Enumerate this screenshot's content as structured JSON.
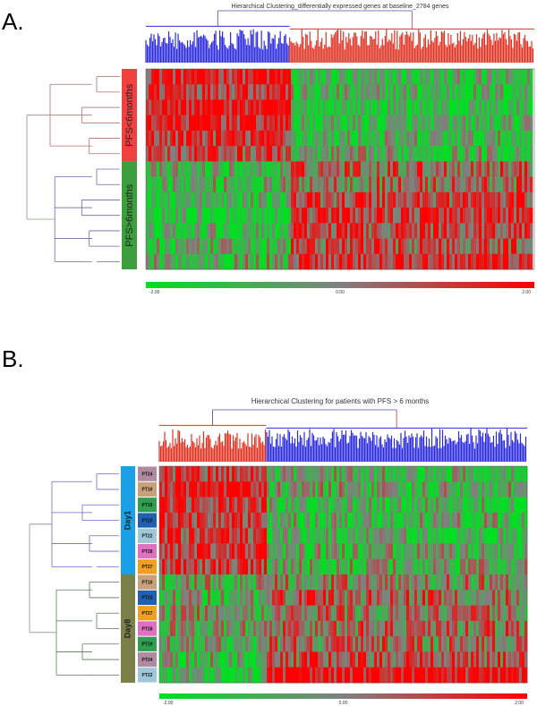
{
  "colors": {
    "low": "#00e020",
    "mid": "#808080",
    "high": "#ff0000",
    "dendro_blue": "#2a2ae0",
    "dendro_red": "#e03020",
    "group_red": "#f04040",
    "group_green": "#3c9e3c",
    "day1_blue": "#1aa0e8",
    "day8_olive": "#7a8048"
  },
  "chart_data": [
    {
      "panel": "A.",
      "type": "heatmap",
      "title": "Hierarchical Clustering_differentially expressed genes at baseline_2784 genes",
      "row_groups": [
        {
          "label": "PFS<6months",
          "rows": 6,
          "color": "#f04040"
        },
        {
          "label": "PFS>6months",
          "rows": 7,
          "color": "#3c9e3c"
        }
      ],
      "column_clusters": [
        {
          "name": "blue",
          "fraction": 0.37
        },
        {
          "name": "red",
          "fraction": 0.63
        }
      ],
      "row_block_levels": [
        [
          0.8,
          -0.6
        ],
        [
          0.7,
          -0.5
        ],
        [
          0.9,
          -0.7
        ],
        [
          0.8,
          -0.6
        ],
        [
          0.6,
          -0.5
        ],
        [
          0.5,
          -0.4
        ],
        [
          -0.5,
          0.3
        ],
        [
          -0.4,
          0.2
        ],
        [
          -0.6,
          0.5
        ],
        [
          -0.7,
          0.6
        ],
        [
          -0.6,
          0.5
        ],
        [
          -0.5,
          0.4
        ],
        [
          -0.3,
          0.7
        ]
      ],
      "color_scale": {
        "min": -2.0,
        "center": 0.0,
        "max": 2.0,
        "tick_labels": [
          "-2.00",
          "0.00",
          "2.00"
        ]
      }
    },
    {
      "panel": "B.",
      "type": "heatmap",
      "title": "Hierarchical Clustering for patients with PFS > 6 months",
      "row_groups": [
        {
          "label": "Day1",
          "rows": 7,
          "color": "#1aa0e8"
        },
        {
          "label": "Day8",
          "rows": 7,
          "color": "#7a8048"
        }
      ],
      "row_labels": [
        "PT24",
        "PT10",
        "PT19",
        "PT23",
        "PT22",
        "PT28",
        "PT27",
        "PT10",
        "PT23",
        "PT27",
        "PT28",
        "PT19",
        "PT24",
        "PT22"
      ],
      "row_label_colors": [
        "#b08aa0",
        "#c8a07a",
        "#2f9e50",
        "#2060b0",
        "#9ec8d8",
        "#e070c0",
        "#f0a020",
        "#c8a07a",
        "#2060b0",
        "#f0a020",
        "#e070c0",
        "#2f9e50",
        "#b08aa0",
        "#9ec8d8"
      ],
      "column_clusters": [
        {
          "name": "red",
          "fraction": 0.29
        },
        {
          "name": "blue",
          "fraction": 0.71
        }
      ],
      "row_block_levels": [
        [
          0.6,
          -0.4
        ],
        [
          0.9,
          -0.3
        ],
        [
          0.7,
          -0.5
        ],
        [
          0.6,
          -0.4
        ],
        [
          0.5,
          -0.5
        ],
        [
          0.7,
          -0.4
        ],
        [
          0.6,
          -0.3
        ],
        [
          -0.2,
          0.0
        ],
        [
          -0.3,
          0.3
        ],
        [
          -0.1,
          0.1
        ],
        [
          -0.2,
          0.2
        ],
        [
          -0.3,
          0.2
        ],
        [
          -0.4,
          0.4
        ],
        [
          -0.5,
          0.9
        ]
      ],
      "color_scale": {
        "min": -2.0,
        "center": 0.0,
        "max": 2.0,
        "tick_labels": [
          "-2.00",
          "0.00",
          "2.00"
        ]
      }
    }
  ]
}
